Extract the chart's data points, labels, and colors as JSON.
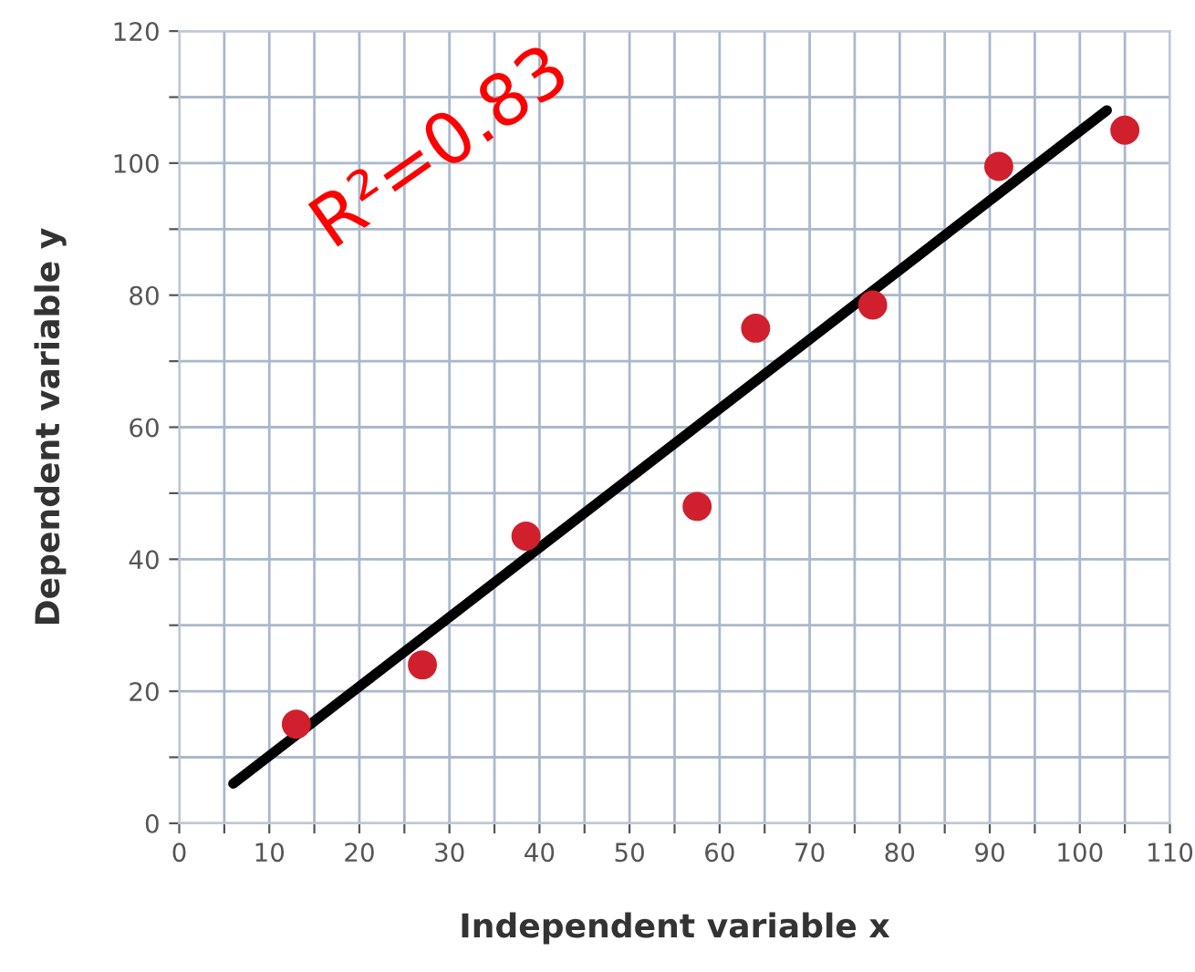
{
  "chart_data": {
    "type": "scatter",
    "xlabel": "Independent variable x",
    "ylabel": "Dependent variable y",
    "annotations": [
      "R²=0.83"
    ],
    "series": [
      {
        "color": "#d0202e",
        "marker": "circle",
        "x": [
          13,
          27,
          38.5,
          57.5,
          64,
          77,
          91,
          105
        ],
        "values": [
          15,
          24,
          43.5,
          48,
          75,
          78.5,
          99.5,
          105
        ]
      },
      {
        "type": "line",
        "color": "#000000",
        "marker": "none",
        "line_style": "solid",
        "x": [
          6,
          103
        ],
        "values": [
          6,
          108
        ]
      }
    ],
    "xlim": [
      0,
      110
    ],
    "ylim": [
      0,
      120
    ],
    "xticks": [
      0,
      {
        "value": 5,
        "label": null
      },
      10,
      {
        "value": 15,
        "label": null
      },
      20,
      {
        "value": 25,
        "label": null
      },
      30,
      {
        "value": 35,
        "label": null
      },
      40,
      {
        "value": 45,
        "label": null
      },
      50,
      {
        "value": 55,
        "label": null
      },
      60,
      {
        "value": 65,
        "label": null
      },
      70,
      {
        "value": 75,
        "label": null
      },
      80,
      {
        "value": 85,
        "label": null
      },
      90,
      {
        "value": 95,
        "label": null
      },
      100,
      {
        "value": 105,
        "label": null
      },
      110
    ],
    "yticks": [
      0,
      {
        "value": 10,
        "label": null
      },
      20,
      {
        "value": 30,
        "label": null
      },
      40,
      {
        "value": 50,
        "label": null
      },
      60,
      {
        "value": 70,
        "label": null
      },
      80,
      {
        "value": 90,
        "label": null
      },
      100,
      {
        "value": 110,
        "label": null
      },
      120
    ],
    "grid": true
  }
}
